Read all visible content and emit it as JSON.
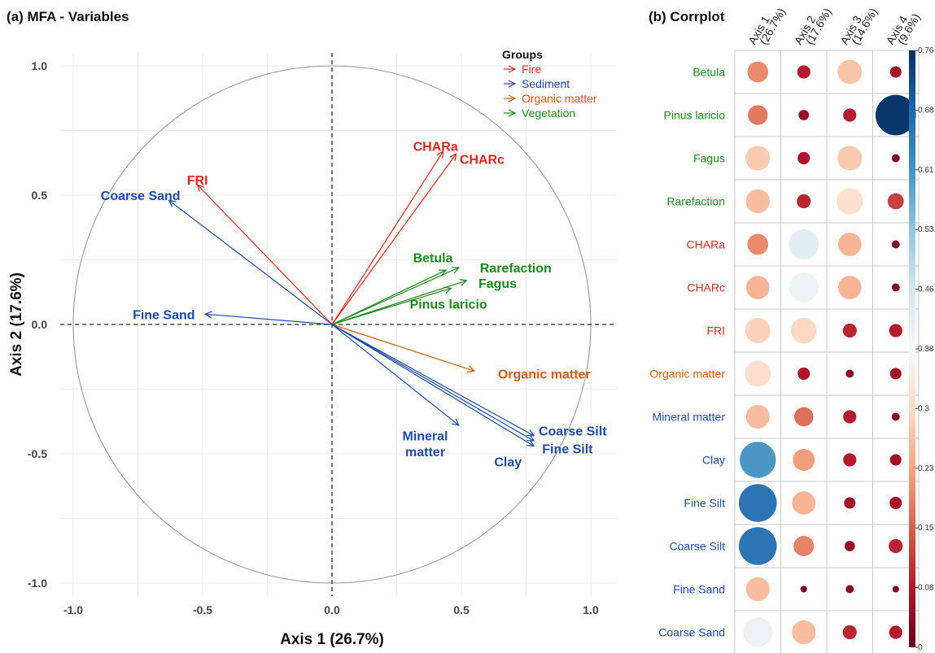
{
  "colors": {
    "Fire": "#e0261e",
    "Sediment": "#1f4aa8",
    "Organic matter": "#d35b0f",
    "Vegetation": "#1e8a1e"
  },
  "panel_a_title": "(a) MFA - Variables",
  "panel_b_title": "(b) Corrplot",
  "chart_data": [
    {
      "type": "scatter",
      "title": "(a) MFA - Variables",
      "xlabel": "Axis 1 (26.7%)",
      "ylabel": "Axis 2 (17.6%)",
      "xlim": [
        -1.05,
        1.1
      ],
      "ylim": [
        -1.05,
        1.05
      ],
      "xticks": [
        "-1.0",
        "-0.5",
        "0.0",
        "0.5",
        "1.0"
      ],
      "yticks": [
        "1.0",
        "0.5",
        "0.0",
        "-0.5",
        "-1.0"
      ],
      "grid": true,
      "legend": {
        "title": "Groups",
        "position": "top-right",
        "items": [
          "Fire",
          "Sediment",
          "Organic matter",
          "Vegetation"
        ]
      },
      "vectors": [
        {
          "name": "CHARa",
          "group": "Fire",
          "x": 0.43,
          "y": 0.67
        },
        {
          "name": "CHARc",
          "group": "Fire",
          "x": 0.48,
          "y": 0.66
        },
        {
          "name": "FRI",
          "group": "Fire",
          "x": -0.52,
          "y": 0.54
        },
        {
          "name": "Coarse Sand",
          "group": "Sediment",
          "x": -0.63,
          "y": 0.48
        },
        {
          "name": "Fine Sand",
          "group": "Sediment",
          "x": -0.49,
          "y": 0.04
        },
        {
          "name": "Betula",
          "group": "Vegetation",
          "x": 0.44,
          "y": 0.21
        },
        {
          "name": "Rarefaction",
          "group": "Vegetation",
          "x": 0.49,
          "y": 0.22
        },
        {
          "name": "Fagus",
          "group": "Vegetation",
          "x": 0.52,
          "y": 0.17
        },
        {
          "name": "Pinus laricio",
          "group": "Vegetation",
          "x": 0.46,
          "y": 0.14
        },
        {
          "name": "Organic matter",
          "group": "Organic matter",
          "x": 0.55,
          "y": -0.18
        },
        {
          "name": "Mineral matter",
          "group": "Sediment",
          "x": 0.49,
          "y": -0.39
        },
        {
          "name": "Coarse Silt",
          "group": "Sediment",
          "x": 0.78,
          "y": -0.43
        },
        {
          "name": "Fine Silt",
          "group": "Sediment",
          "x": 0.78,
          "y": -0.45
        },
        {
          "name": "Clay",
          "group": "Sediment",
          "x": 0.78,
          "y": -0.47
        }
      ],
      "vector_labels": [
        {
          "text": "CHARa",
          "group": "Fire",
          "lx": 0.4,
          "ly": 0.69
        },
        {
          "text": "CHARc",
          "group": "Fire",
          "lx": 0.58,
          "ly": 0.64
        },
        {
          "text": "FRI",
          "group": "Fire",
          "lx": -0.52,
          "ly": 0.56
        },
        {
          "text": "Coarse Sand",
          "group": "Sediment",
          "lx": -0.74,
          "ly": 0.5
        },
        {
          "text": "Fine Sand",
          "group": "Sediment",
          "lx": -0.65,
          "ly": 0.04
        },
        {
          "text": "Betula",
          "group": "Vegetation",
          "lx": 0.39,
          "ly": 0.26
        },
        {
          "text": "Rarefaction",
          "group": "Vegetation",
          "lx": 0.71,
          "ly": 0.22
        },
        {
          "text": "Fagus",
          "group": "Vegetation",
          "lx": 0.64,
          "ly": 0.16
        },
        {
          "text": "Pinus laricio",
          "group": "Vegetation",
          "lx": 0.45,
          "ly": 0.08
        },
        {
          "text": "Organic matter",
          "group": "Organic matter",
          "lx": 0.82,
          "ly": -0.19
        },
        {
          "text": "Mineral",
          "group": "Sediment",
          "lx": 0.36,
          "ly": -0.43
        },
        {
          "text": "matter",
          "group": "Sediment",
          "lx": 0.36,
          "ly": -0.49
        },
        {
          "text": "Coarse Silt",
          "group": "Sediment",
          "lx": 0.93,
          "ly": -0.41
        },
        {
          "text": "Fine Silt",
          "group": "Sediment",
          "lx": 0.91,
          "ly": -0.48
        },
        {
          "text": "Clay",
          "group": "Sediment",
          "lx": 0.68,
          "ly": -0.53
        }
      ]
    },
    {
      "type": "heatmap",
      "title": "(b) Corrplot",
      "columns": [
        "Axis 1\n(26.7%)",
        "Axis 2\n(17.6%)",
        "Axis 3\n(14.6%)",
        "Axis 4\n(9.6%)"
      ],
      "rows": [
        {
          "name": "Betula",
          "group": "Vegetation",
          "values": [
            0.2,
            0.08,
            0.27,
            0.06
          ]
        },
        {
          "name": "Pinus laricio",
          "group": "Vegetation",
          "values": [
            0.18,
            0.05,
            0.08,
            0.75
          ]
        },
        {
          "name": "Fagus",
          "group": "Vegetation",
          "values": [
            0.28,
            0.07,
            0.28,
            0.03
          ]
        },
        {
          "name": "Rarefaction",
          "group": "Vegetation",
          "values": [
            0.26,
            0.09,
            0.32,
            0.12
          ]
        },
        {
          "name": "CHARa",
          "group": "Fire",
          "values": [
            0.2,
            0.42,
            0.25,
            0.03
          ]
        },
        {
          "name": "CHARc",
          "group": "Fire",
          "values": [
            0.25,
            0.4,
            0.25,
            0.03
          ]
        },
        {
          "name": "FRI",
          "group": "Fire",
          "values": [
            0.29,
            0.3,
            0.09,
            0.08
          ]
        },
        {
          "name": "Organic matter",
          "group": "Organic matter",
          "values": [
            0.31,
            0.07,
            0.03,
            0.06
          ]
        },
        {
          "name": "Mineral matter",
          "group": "Sediment",
          "values": [
            0.26,
            0.17,
            0.08,
            0.03
          ]
        },
        {
          "name": "Clay",
          "group": "Sediment",
          "values": [
            0.6,
            0.22,
            0.08,
            0.06
          ]
        },
        {
          "name": "Fine Silt",
          "group": "Sediment",
          "values": [
            0.66,
            0.25,
            0.06,
            0.07
          ]
        },
        {
          "name": "Coarse Silt",
          "group": "Sediment",
          "values": [
            0.66,
            0.19,
            0.05,
            0.09
          ]
        },
        {
          "name": "Fine Sand",
          "group": "Sediment",
          "values": [
            0.26,
            0.02,
            0.03,
            0.02
          ]
        },
        {
          "name": "Coarse Sand",
          "group": "Sediment",
          "values": [
            0.4,
            0.26,
            0.09,
            0.08
          ]
        }
      ],
      "colorbar": {
        "range": [
          0,
          0.76
        ],
        "ticks": [
          "0.76",
          "0.68",
          "0.61",
          "0.53",
          "0.46",
          "0.38",
          "0.3",
          "0.23",
          "0.15",
          "0.08",
          "0"
        ],
        "stops": [
          "#67001f",
          "#b2182b",
          "#d6604d",
          "#f4a582",
          "#fddbc7",
          "#f7f7f7",
          "#d1e5f0",
          "#92c5de",
          "#4393c3",
          "#2166ac",
          "#053061"
        ]
      }
    }
  ]
}
